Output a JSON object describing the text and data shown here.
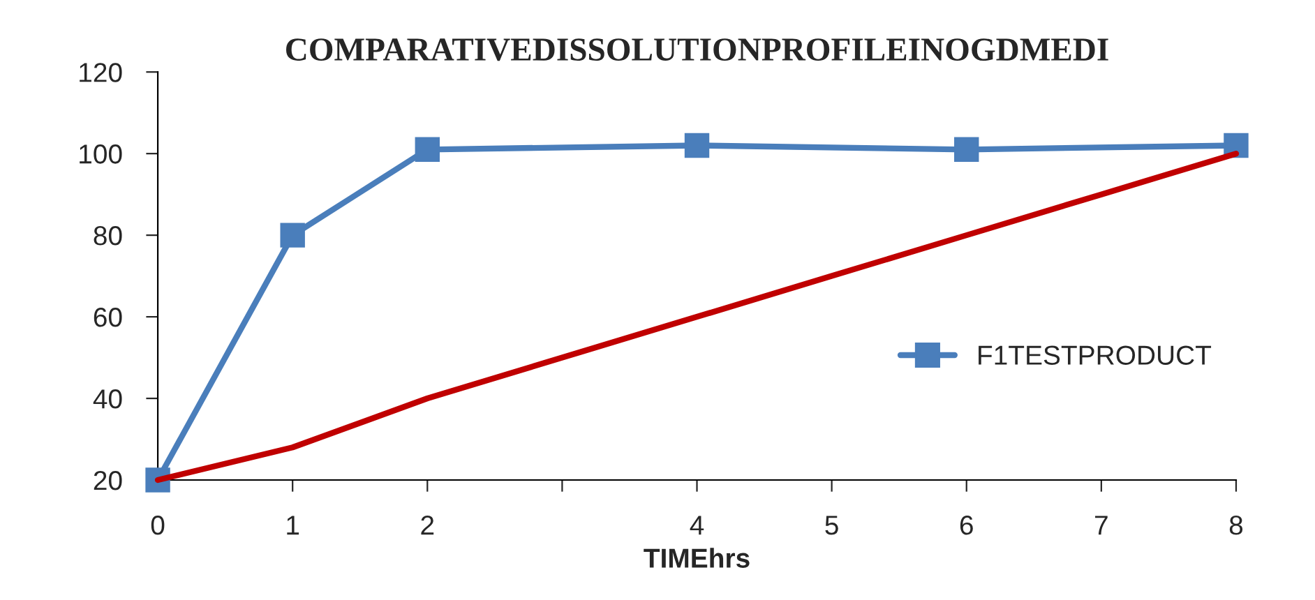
{
  "chart_data": {
    "type": "line",
    "title": "COMPARATIVEDISSOLUTIONPROFILEINOGDMEDI",
    "xlabel": "TIMEhrs",
    "series": [
      {
        "color": "#c00000",
        "marker": "none",
        "x": [
          0,
          1,
          2,
          3,
          4,
          5,
          6,
          7,
          8
        ],
        "values": [
          20,
          28,
          40,
          50,
          60,
          70,
          80,
          90,
          100
        ]
      },
      {
        "name": "F1TESTPRODUCT",
        "color": "#4a7ebb",
        "marker": "square",
        "x": [
          0,
          1,
          2,
          4,
          6,
          8
        ],
        "values": [
          20,
          80,
          101,
          102,
          101,
          102
        ]
      }
    ],
    "xlim": [
      0,
      8
    ],
    "xticks": [
      0,
      1,
      2,
      {
        "value": 3,
        "label": null
      },
      4,
      5,
      6,
      7,
      8
    ],
    "ylim": [
      20,
      120
    ],
    "yticks": [
      20,
      40,
      60,
      80,
      100,
      120
    ],
    "grid": false,
    "legend": "right",
    "line_style": "solid"
  }
}
